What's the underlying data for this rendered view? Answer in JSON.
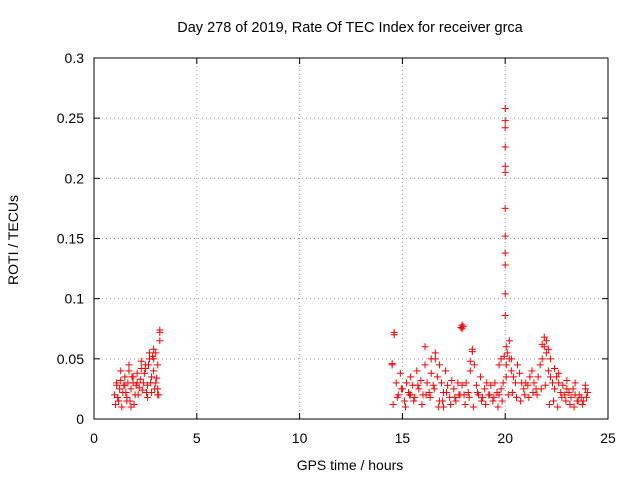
{
  "chart_data": {
    "type": "scatter",
    "title": "Day 278 of 2019, Rate Of TEC Index for receiver grca",
    "xlabel": "GPS time / hours",
    "ylabel": "ROTI / TECUs",
    "xlim": [
      0,
      25
    ],
    "ylim": [
      0,
      0.3
    ],
    "x_ticks": [
      0,
      5,
      10,
      15,
      20,
      25
    ],
    "y_ticks": [
      0,
      0.05,
      0.1,
      0.15,
      0.2,
      0.25,
      0.3
    ],
    "x_tick_labels": [
      "0",
      "5",
      "10",
      "15",
      "20",
      "25"
    ],
    "y_tick_labels": [
      "0",
      "0.05",
      "0.1",
      "0.15",
      "0.2",
      "0.25",
      "0.3"
    ],
    "grid": true,
    "legend": "none",
    "marker": "+",
    "color": "#ff0000",
    "series": [
      {
        "x": [
          1.0,
          1.1,
          1.2,
          1.3,
          1.4,
          1.5,
          1.6,
          1.7,
          1.8,
          1.9,
          2.0,
          2.1,
          2.2,
          2.3,
          2.4,
          2.5,
          2.6,
          2.7,
          2.8,
          2.9,
          3.0,
          3.1,
          1.05,
          1.15,
          1.25,
          1.35,
          1.45,
          1.55,
          1.65,
          1.75,
          1.85,
          1.95,
          2.05,
          2.15,
          2.25,
          2.35,
          2.45,
          2.55,
          2.65,
          2.75,
          2.85,
          2.95,
          3.05,
          3.15,
          1.1,
          1.3,
          1.5,
          1.7,
          1.9,
          2.1,
          2.3,
          2.5,
          2.7,
          2.9,
          3.1,
          1.6,
          1.8,
          2.6,
          2.8,
          2.9,
          3.0,
          3.2,
          3.2,
          3.2,
          3.1,
          14.5,
          14.6,
          14.7,
          14.8,
          14.9,
          15.0,
          15.1,
          15.2,
          15.3,
          15.4,
          15.5,
          15.6,
          15.7,
          15.8,
          15.9,
          16.0,
          16.1,
          16.2,
          16.3,
          16.4,
          16.5,
          16.6,
          16.7,
          16.8,
          16.9,
          17.0,
          17.1,
          17.2,
          17.3,
          17.4,
          17.5,
          17.6,
          17.7,
          17.8,
          17.9,
          14.55,
          14.75,
          14.95,
          15.15,
          15.35,
          15.55,
          15.75,
          15.95,
          16.15,
          16.35,
          16.55,
          16.75,
          16.95,
          17.15,
          17.35,
          17.55,
          17.75,
          14.5,
          14.6,
          15.4,
          16.1,
          16.4,
          16.6,
          16.8,
          17.0,
          17.9,
          17.9,
          17.85,
          17.95,
          18.0,
          18.1,
          18.2,
          18.3,
          18.4,
          18.5,
          18.6,
          18.7,
          18.8,
          18.9,
          19.0,
          19.1,
          19.2,
          19.3,
          19.4,
          19.5,
          19.6,
          19.7,
          19.8,
          19.9,
          18.05,
          18.25,
          18.45,
          18.65,
          18.85,
          19.05,
          19.25,
          19.45,
          19.65,
          19.85,
          18.3,
          18.4,
          19.7,
          19.8,
          19.95,
          20.0,
          20.0,
          20.0,
          20.0,
          20.0,
          20.0,
          20.0,
          20.0,
          20.0,
          20.0,
          20.0,
          20.0,
          20.05,
          20.05,
          20.05,
          20.1,
          20.2,
          20.3,
          20.4,
          20.5,
          20.6,
          20.7,
          20.8,
          20.9,
          21.0,
          21.1,
          21.2,
          21.3,
          21.4,
          21.5,
          21.6,
          21.7,
          21.8,
          21.9,
          22.0,
          20.15,
          20.35,
          20.55,
          20.75,
          20.95,
          21.15,
          21.35,
          21.55,
          21.75,
          21.95,
          20.2,
          20.3,
          21.8,
          21.9,
          22.0,
          22.1,
          22.1,
          22.2,
          22.3,
          22.4,
          22.5,
          22.6,
          22.7,
          22.8,
          22.9,
          23.0,
          23.1,
          23.2,
          23.3,
          23.4,
          23.5,
          23.6,
          23.7,
          23.8,
          23.9,
          24.0,
          22.15,
          22.35,
          22.55,
          22.75,
          22.95,
          23.15,
          23.35,
          23.55,
          23.75,
          23.95,
          22.2,
          22.4,
          22.6,
          23.0,
          23.4,
          23.9
        ],
        "y": [
          0.02,
          0.028,
          0.015,
          0.032,
          0.022,
          0.035,
          0.018,
          0.04,
          0.025,
          0.03,
          0.02,
          0.038,
          0.026,
          0.042,
          0.03,
          0.045,
          0.028,
          0.05,
          0.035,
          0.04,
          0.03,
          0.025,
          0.012,
          0.018,
          0.025,
          0.01,
          0.028,
          0.022,
          0.03,
          0.015,
          0.035,
          0.012,
          0.028,
          0.02,
          0.033,
          0.024,
          0.038,
          0.022,
          0.045,
          0.03,
          0.052,
          0.025,
          0.034,
          0.02,
          0.03,
          0.04,
          0.028,
          0.045,
          0.035,
          0.03,
          0.048,
          0.042,
          0.055,
          0.05,
          0.045,
          0.015,
          0.01,
          0.018,
          0.022,
          0.058,
          0.055,
          0.065,
          0.072,
          0.074,
          0.02,
          0.045,
          0.07,
          0.03,
          0.02,
          0.038,
          0.025,
          0.015,
          0.03,
          0.022,
          0.035,
          0.028,
          0.018,
          0.04,
          0.025,
          0.032,
          0.02,
          0.045,
          0.03,
          0.022,
          0.038,
          0.028,
          0.05,
          0.035,
          0.015,
          0.03,
          0.022,
          0.04,
          0.028,
          0.018,
          0.032,
          0.025,
          0.015,
          0.03,
          0.02,
          0.028,
          0.012,
          0.018,
          0.025,
          0.01,
          0.02,
          0.015,
          0.028,
          0.012,
          0.02,
          0.018,
          0.025,
          0.01,
          0.015,
          0.022,
          0.012,
          0.018,
          0.02,
          0.046,
          0.072,
          0.02,
          0.06,
          0.05,
          0.055,
          0.045,
          0.01,
          0.075,
          0.078,
          0.076,
          0.077,
          0.02,
          0.03,
          0.022,
          0.04,
          0.058,
          0.045,
          0.028,
          0.02,
          0.035,
          0.018,
          0.025,
          0.03,
          0.02,
          0.028,
          0.015,
          0.03,
          0.022,
          0.02,
          0.025,
          0.03,
          0.012,
          0.018,
          0.01,
          0.022,
          0.015,
          0.012,
          0.02,
          0.018,
          0.01,
          0.015,
          0.048,
          0.056,
          0.045,
          0.05,
          0.052,
          0.258,
          0.248,
          0.242,
          0.226,
          0.21,
          0.205,
          0.175,
          0.152,
          0.138,
          0.128,
          0.104,
          0.086,
          0.06,
          0.045,
          0.035,
          0.055,
          0.05,
          0.04,
          0.035,
          0.03,
          0.045,
          0.038,
          0.03,
          0.025,
          0.03,
          0.028,
          0.035,
          0.04,
          0.03,
          0.025,
          0.035,
          0.045,
          0.05,
          0.06,
          0.055,
          0.02,
          0.022,
          0.018,
          0.015,
          0.02,
          0.018,
          0.022,
          0.02,
          0.025,
          0.028,
          0.065,
          0.05,
          0.062,
          0.068,
          0.065,
          0.058,
          0.04,
          0.035,
          0.03,
          0.025,
          0.035,
          0.03,
          0.022,
          0.028,
          0.02,
          0.025,
          0.022,
          0.018,
          0.025,
          0.02,
          0.015,
          0.02,
          0.018,
          0.015,
          0.025,
          0.022,
          0.012,
          0.015,
          0.01,
          0.018,
          0.015,
          0.012,
          0.01,
          0.015,
          0.012,
          0.018,
          0.05,
          0.042,
          0.038,
          0.032,
          0.03,
          0.028
        ]
      }
    ]
  }
}
